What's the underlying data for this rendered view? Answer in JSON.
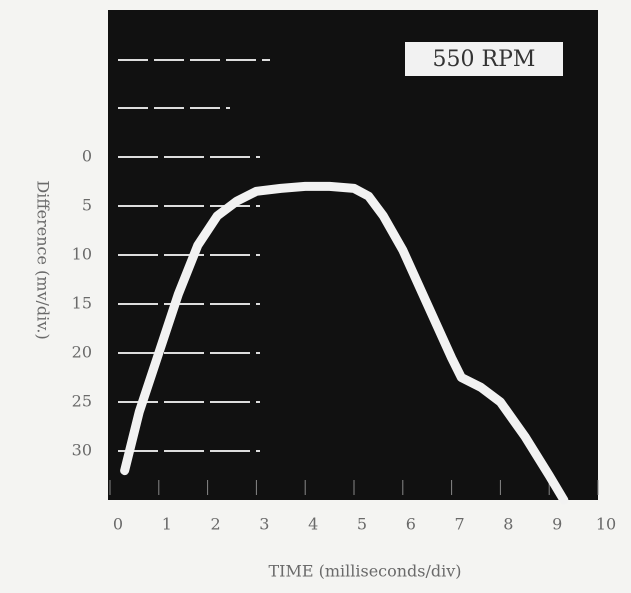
{
  "chart_data": {
    "type": "line",
    "title": "550 RPM",
    "x_label": "TIME (milliseconds/div)",
    "y_label": "Difference (mv/div.)",
    "x": [
      0.3,
      0.6,
      1,
      1.4,
      1.8,
      2.2,
      2.6,
      3,
      3.5,
      4,
      4.5,
      5,
      5.3,
      5.6,
      6,
      6.5,
      7,
      7.2,
      7.6,
      8,
      8.5,
      9,
      9.3
    ],
    "series": [
      {
        "name": "550 RPM",
        "color": "#f2f2f2",
        "values": [
          32,
          26,
          20,
          14,
          9,
          6,
          4.5,
          3.5,
          3.2,
          3,
          3,
          3.2,
          4,
          6,
          9.5,
          15,
          20.5,
          22.5,
          23.5,
          25,
          28.5,
          32.5,
          35
        ]
      }
    ],
    "xlim": [
      0,
      10
    ],
    "xticks": [
      0,
      1,
      2,
      3,
      4,
      5,
      6,
      7,
      8,
      9,
      10
    ],
    "ylim": [
      35,
      -15
    ],
    "yticks": [
      0,
      5,
      10,
      15,
      20,
      25,
      30
    ],
    "grid": true
  }
}
